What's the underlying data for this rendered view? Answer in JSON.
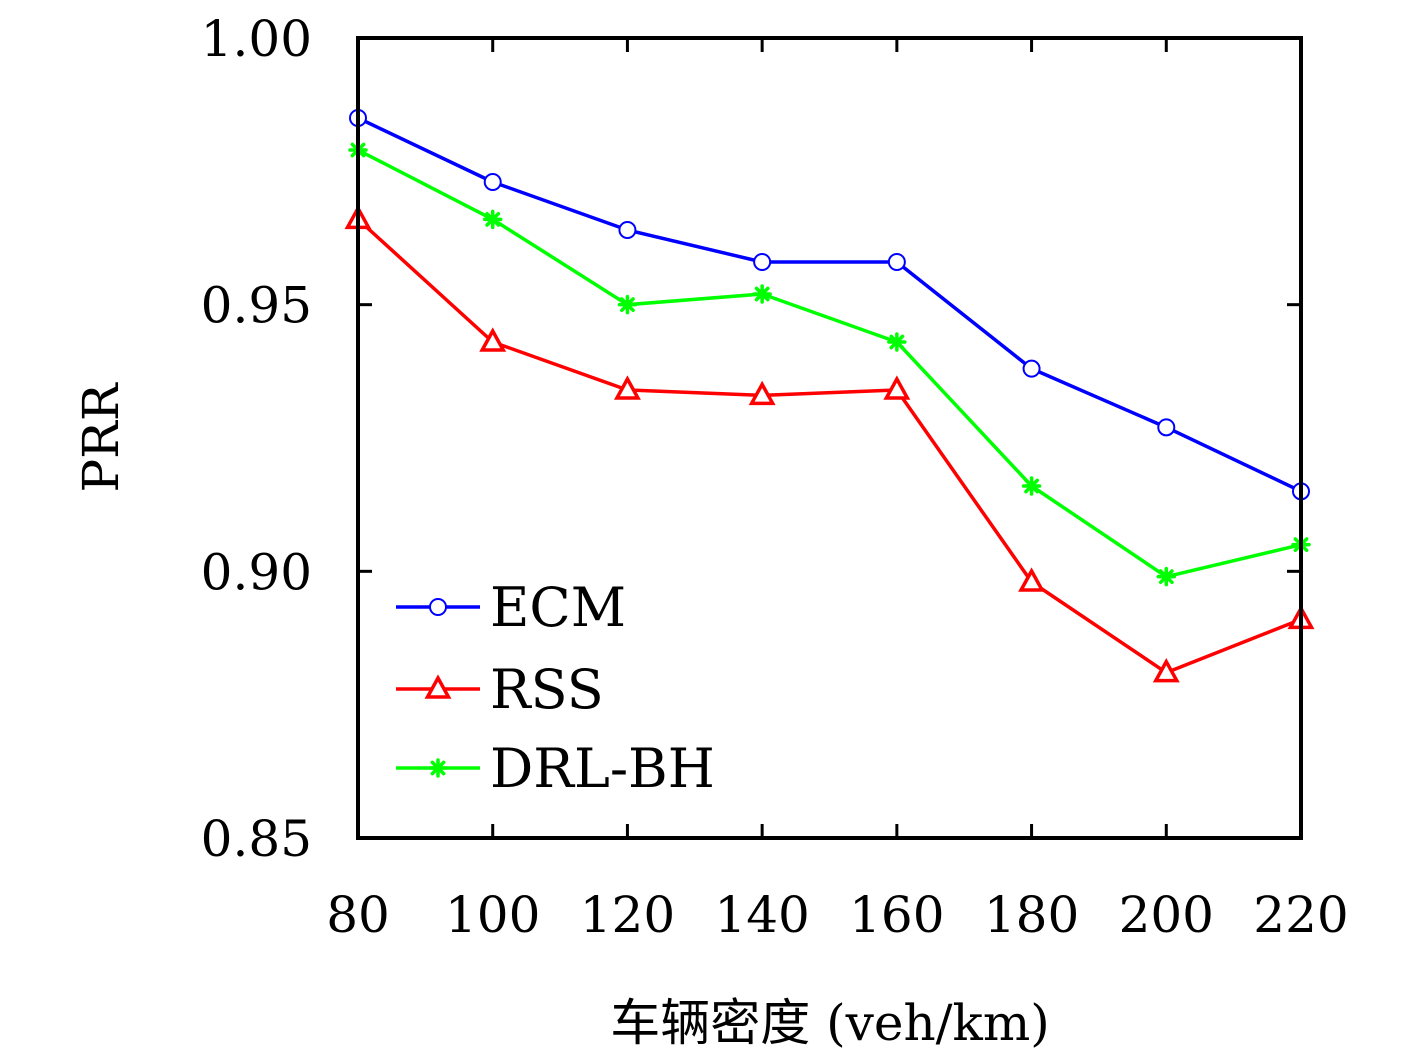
{
  "chart_data": {
    "type": "line",
    "title": "",
    "xlabel": "车辆密度 (veh/km)",
    "ylabel": "PRR",
    "x": [
      80,
      100,
      120,
      140,
      160,
      180,
      200,
      220
    ],
    "x_tick_labels": [
      "80",
      "100",
      "120",
      "140",
      "160",
      "180",
      "200",
      "220"
    ],
    "xlim": [
      80,
      220
    ],
    "ylim": [
      0.85,
      1.0
    ],
    "y_ticks": [
      0.85,
      0.9,
      0.95,
      1.0
    ],
    "y_tick_labels": [
      "0.85",
      "0.90",
      "0.95",
      "1.00"
    ],
    "grid": false,
    "legend_position": "bottom-left",
    "series": [
      {
        "name": "ECM",
        "color": "#0000ff",
        "marker": "circle",
        "values": [
          0.985,
          0.973,
          0.964,
          0.958,
          0.958,
          0.938,
          0.927,
          0.915
        ]
      },
      {
        "name": "RSS",
        "color": "#ff0000",
        "marker": "triangle",
        "values": [
          0.966,
          0.943,
          0.934,
          0.933,
          0.934,
          0.898,
          0.881,
          0.891
        ]
      },
      {
        "name": "DRL-BH",
        "color": "#00ff00",
        "marker": "asterisk",
        "values": [
          0.979,
          0.966,
          0.95,
          0.952,
          0.943,
          0.916,
          0.899,
          0.905
        ]
      }
    ]
  }
}
